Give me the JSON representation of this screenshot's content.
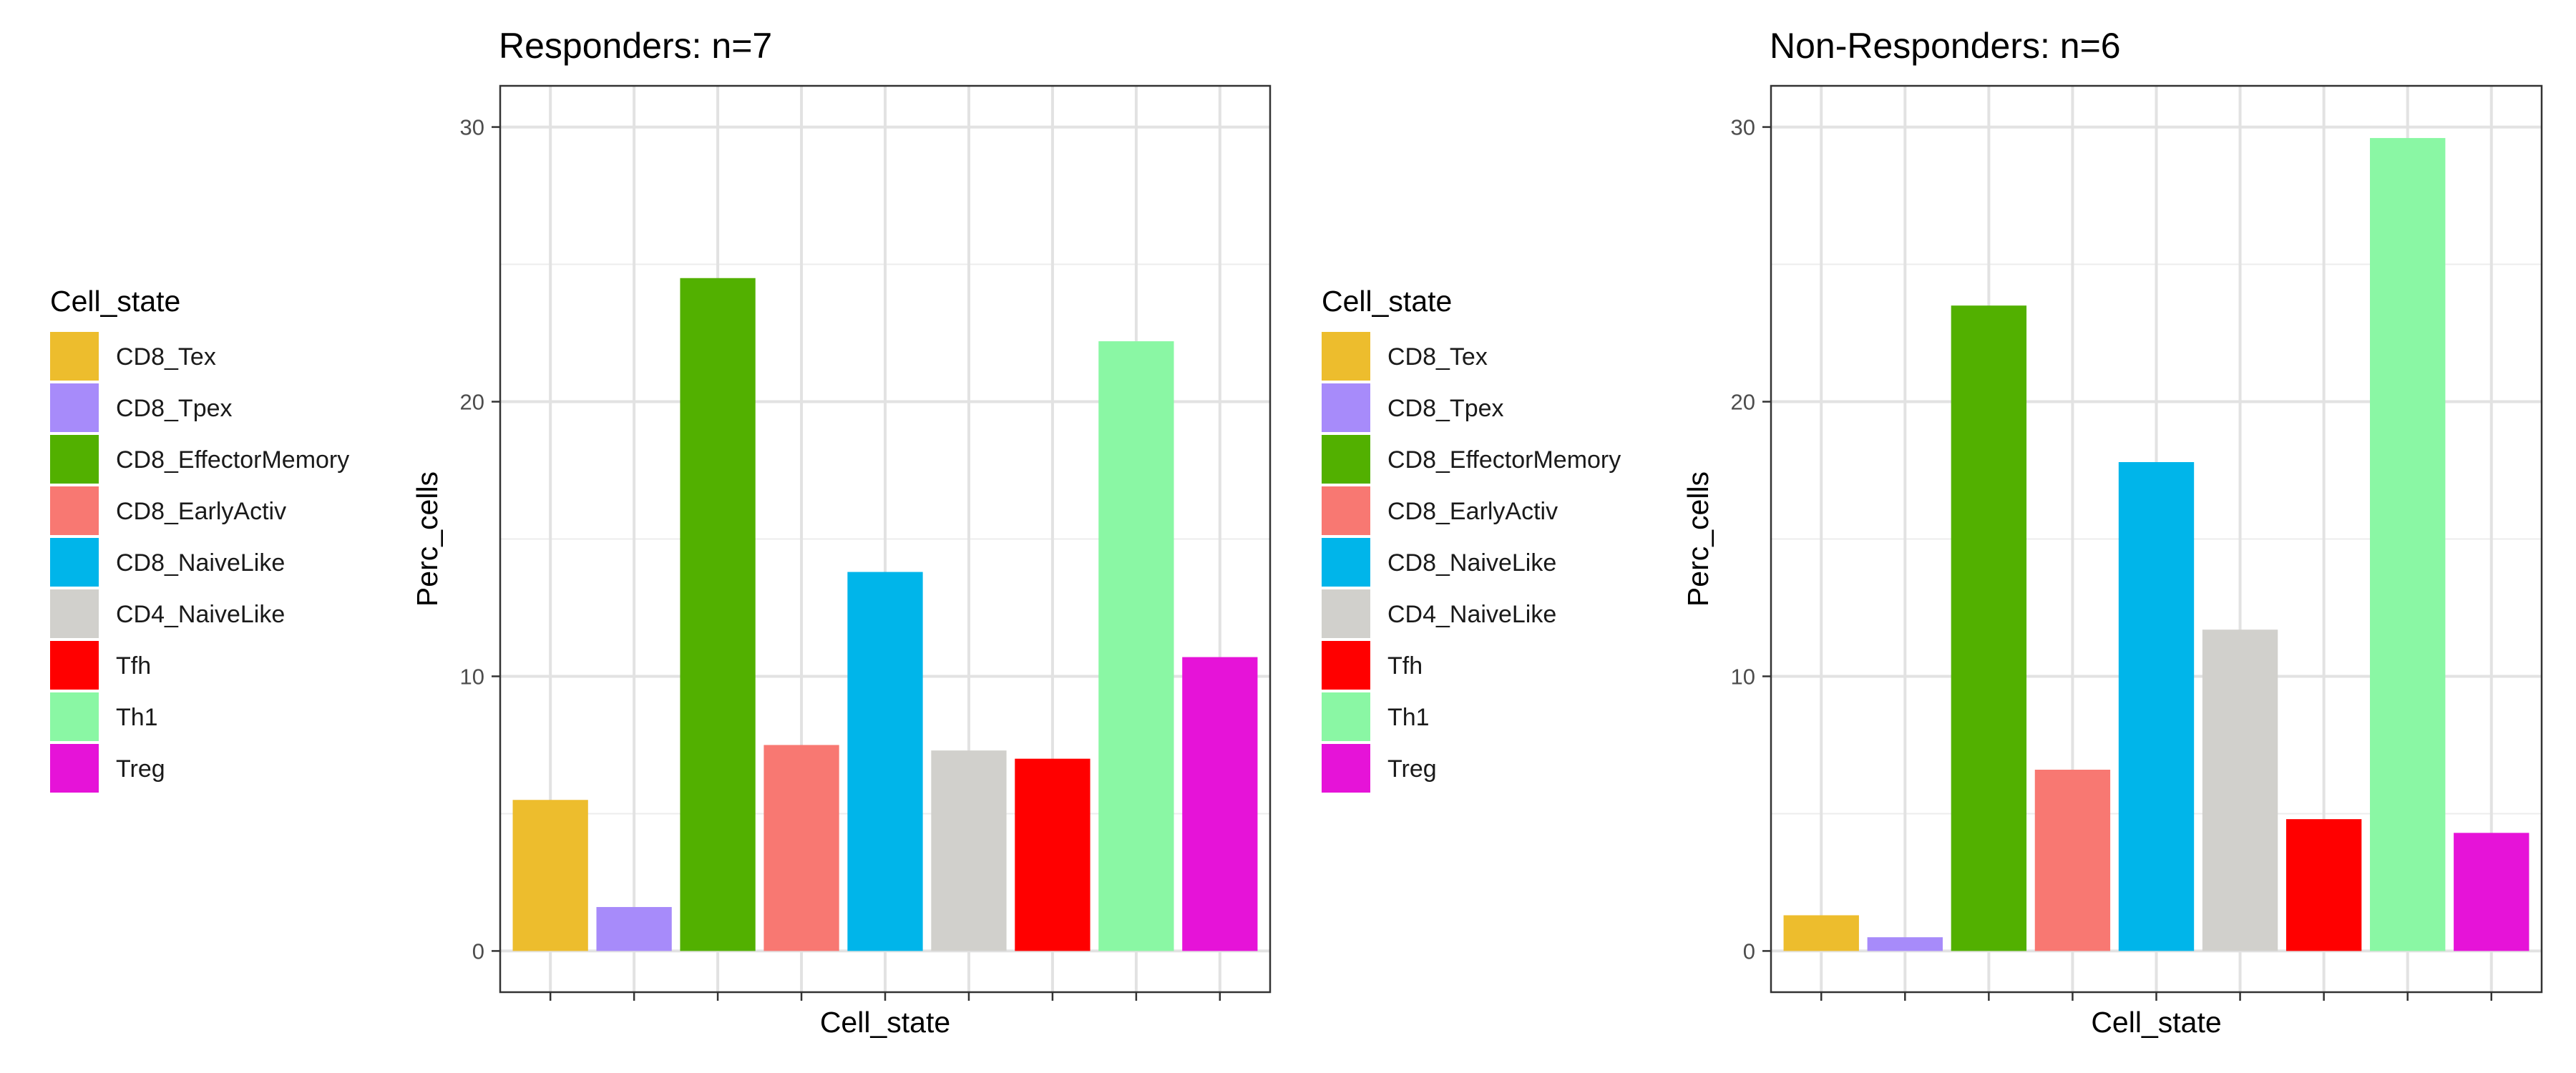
{
  "legend": {
    "title": "Cell_state",
    "entries": [
      {
        "label": "CD8_Tex",
        "color": "#EDBD2D"
      },
      {
        "label": "CD8_Tpex",
        "color": "#A78BFA"
      },
      {
        "label": "CD8_EffectorMemory",
        "color": "#52B000"
      },
      {
        "label": "CD8_EarlyActiv",
        "color": "#F87872"
      },
      {
        "label": "CD8_NaiveLike",
        "color": "#00B5EA"
      },
      {
        "label": "CD4_NaiveLike",
        "color": "#D1D0CC"
      },
      {
        "label": "Tfh",
        "color": "#FF0000"
      },
      {
        "label": "Th1",
        "color": "#8AF7A4"
      },
      {
        "label": "Treg",
        "color": "#E613D8"
      }
    ]
  },
  "chart_data": [
    {
      "type": "bar",
      "title": "Responders: n=7",
      "xlabel": "Cell_state",
      "ylabel": "Perc_cells",
      "categories": [
        "CD8_Tex",
        "CD8_Tpex",
        "CD8_EffectorMemory",
        "CD8_EarlyActiv",
        "CD8_NaiveLike",
        "CD4_NaiveLike",
        "Tfh",
        "Th1",
        "Treg"
      ],
      "values": [
        5.5,
        1.6,
        24.5,
        7.5,
        13.8,
        7.3,
        7.0,
        22.2,
        10.7
      ],
      "ylim": [
        -1.5,
        31.5
      ],
      "yticks": [
        0,
        10,
        20,
        30
      ],
      "grid": true,
      "legend": "left"
    },
    {
      "type": "bar",
      "title": "Non-Responders: n=6",
      "xlabel": "Cell_state",
      "ylabel": "Perc_cells",
      "categories": [
        "CD8_Tex",
        "CD8_Tpex",
        "CD8_EffectorMemory",
        "CD8_EarlyActiv",
        "CD8_NaiveLike",
        "CD4_NaiveLike",
        "Tfh",
        "Th1",
        "Treg"
      ],
      "values": [
        1.3,
        0.5,
        23.5,
        6.6,
        17.8,
        11.7,
        4.8,
        29.6,
        4.3
      ],
      "ylim": [
        -1.5,
        31.5
      ],
      "yticks": [
        0,
        10,
        20,
        30
      ],
      "grid": true,
      "legend": "left"
    }
  ]
}
